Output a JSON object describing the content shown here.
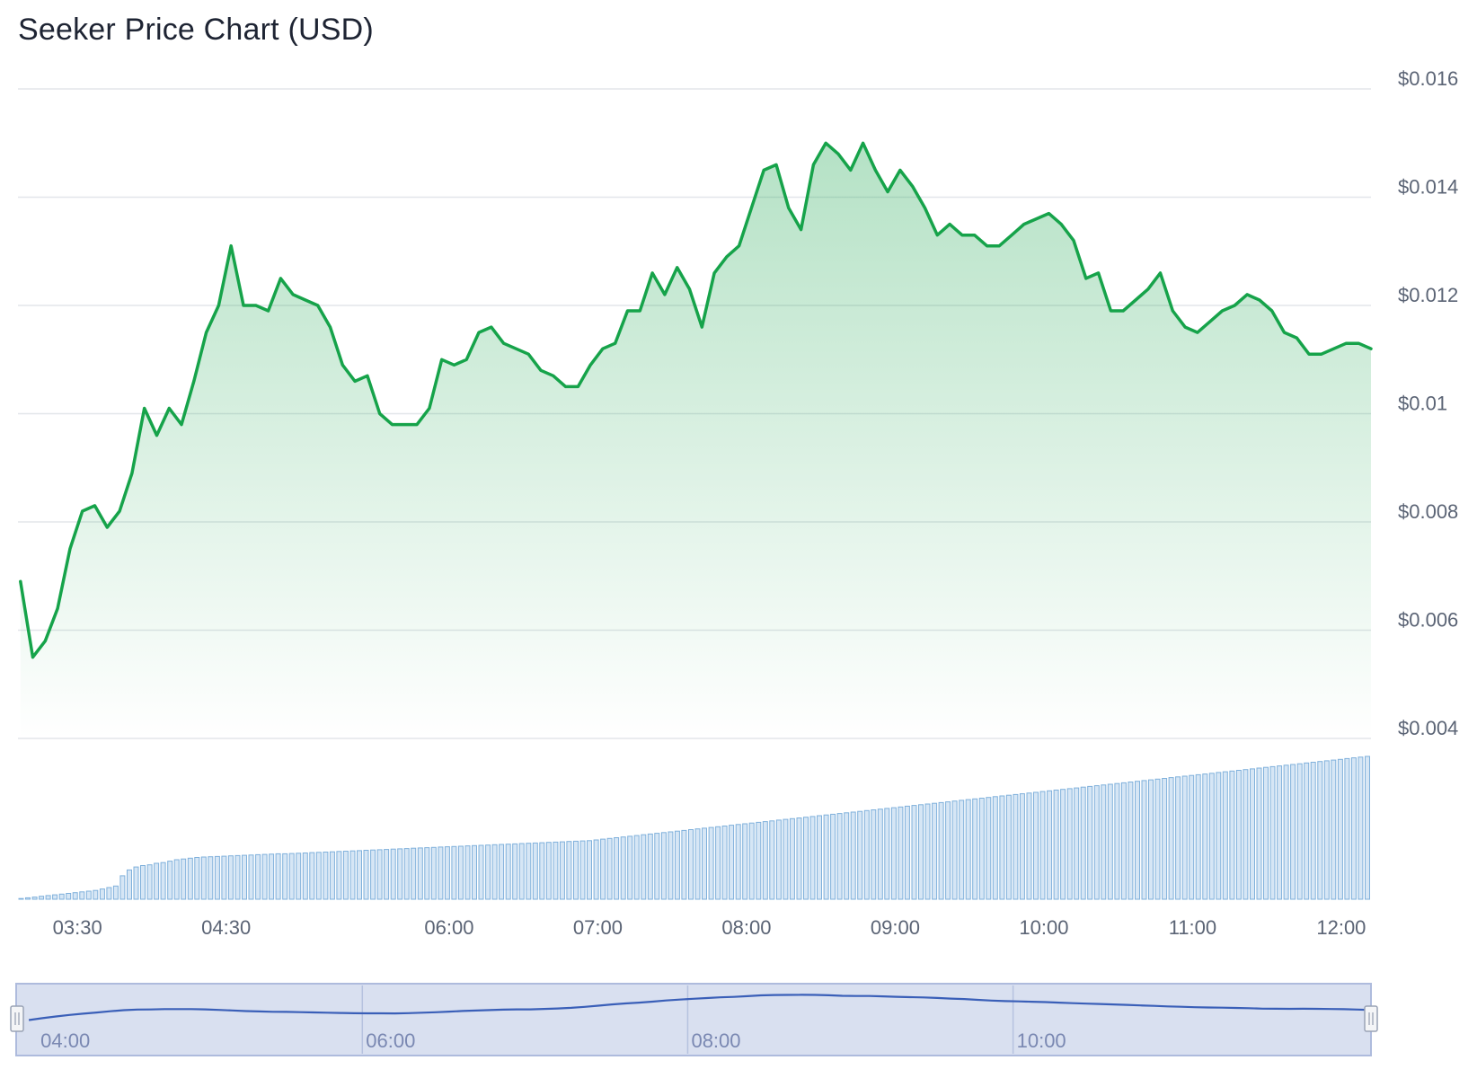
{
  "chart_data": {
    "type": "area",
    "title": "Seeker Price Chart (USD)",
    "xlabel": "",
    "ylabel": "",
    "ylim": [
      0.004,
      0.016
    ],
    "y_ticks": [
      "$0.004",
      "$0.006",
      "$0.008",
      "$0.01",
      "$0.012",
      "$0.014",
      "$0.016"
    ],
    "y_tick_values": [
      0.004,
      0.006,
      0.008,
      0.01,
      0.012,
      0.014,
      0.016
    ],
    "x_ticks": [
      "03:30",
      "04:30",
      "06:00",
      "07:00",
      "08:00",
      "09:00",
      "10:00",
      "11:00",
      "12:00"
    ],
    "x_tick_times": [
      "03:30",
      "04:30",
      "06:00",
      "07:00",
      "08:00",
      "09:00",
      "10:00",
      "11:00",
      "12:00"
    ],
    "x_range": [
      "03:06",
      "12:12"
    ],
    "grid": true,
    "legend": "none",
    "colors": {
      "line": "#16a34a",
      "fill": "#bfe8c9",
      "volume_bar": "#d6e6f5",
      "volume_edge": "#7fb0db",
      "navigator_line": "#3a5fb8",
      "navigator_fill": "#d9e0f0"
    },
    "series": [
      {
        "kind": "price",
        "points": [
          [
            "03:07",
            0.0069
          ],
          [
            "03:12",
            0.0055
          ],
          [
            "03:17",
            0.0058
          ],
          [
            "03:22",
            0.0064
          ],
          [
            "03:27",
            0.0075
          ],
          [
            "03:32",
            0.0082
          ],
          [
            "03:37",
            0.0083
          ],
          [
            "03:42",
            0.0079
          ],
          [
            "03:47",
            0.0082
          ],
          [
            "03:52",
            0.0089
          ],
          [
            "03:57",
            0.0101
          ],
          [
            "04:02",
            0.0096
          ],
          [
            "04:07",
            0.0101
          ],
          [
            "04:12",
            0.0098
          ],
          [
            "04:17",
            0.0106
          ],
          [
            "04:22",
            0.0115
          ],
          [
            "04:27",
            0.012
          ],
          [
            "04:32",
            0.0131
          ],
          [
            "04:37",
            0.012
          ],
          [
            "04:42",
            0.012
          ],
          [
            "04:47",
            0.0119
          ],
          [
            "04:52",
            0.0125
          ],
          [
            "04:57",
            0.0122
          ],
          [
            "05:02",
            0.0121
          ],
          [
            "05:07",
            0.012
          ],
          [
            "05:12",
            0.0116
          ],
          [
            "05:17",
            0.0109
          ],
          [
            "05:22",
            0.0106
          ],
          [
            "05:27",
            0.0107
          ],
          [
            "05:32",
            0.01
          ],
          [
            "05:37",
            0.0098
          ],
          [
            "05:42",
            0.0098
          ],
          [
            "05:47",
            0.0098
          ],
          [
            "05:52",
            0.0101
          ],
          [
            "05:57",
            0.011
          ],
          [
            "06:02",
            0.0109
          ],
          [
            "06:07",
            0.011
          ],
          [
            "06:12",
            0.0115
          ],
          [
            "06:17",
            0.0116
          ],
          [
            "06:22",
            0.0113
          ],
          [
            "06:27",
            0.0112
          ],
          [
            "06:32",
            0.0111
          ],
          [
            "06:37",
            0.0108
          ],
          [
            "06:42",
            0.0107
          ],
          [
            "06:47",
            0.0105
          ],
          [
            "06:52",
            0.0105
          ],
          [
            "06:57",
            0.0109
          ],
          [
            "07:02",
            0.0112
          ],
          [
            "07:07",
            0.0113
          ],
          [
            "07:12",
            0.0119
          ],
          [
            "07:17",
            0.0119
          ],
          [
            "07:22",
            0.0126
          ],
          [
            "07:27",
            0.0122
          ],
          [
            "07:32",
            0.0127
          ],
          [
            "07:37",
            0.0123
          ],
          [
            "07:42",
            0.0116
          ],
          [
            "07:47",
            0.0126
          ],
          [
            "07:52",
            0.0129
          ],
          [
            "07:57",
            0.0131
          ],
          [
            "08:02",
            0.0138
          ],
          [
            "08:07",
            0.0145
          ],
          [
            "08:12",
            0.0146
          ],
          [
            "08:17",
            0.0138
          ],
          [
            "08:22",
            0.0134
          ],
          [
            "08:27",
            0.0146
          ],
          [
            "08:32",
            0.015
          ],
          [
            "08:37",
            0.0148
          ],
          [
            "08:42",
            0.0145
          ],
          [
            "08:47",
            0.015
          ],
          [
            "08:52",
            0.0145
          ],
          [
            "08:57",
            0.0141
          ],
          [
            "09:02",
            0.0145
          ],
          [
            "09:07",
            0.0142
          ],
          [
            "09:12",
            0.0138
          ],
          [
            "09:17",
            0.0133
          ],
          [
            "09:22",
            0.0135
          ],
          [
            "09:27",
            0.0133
          ],
          [
            "09:32",
            0.0133
          ],
          [
            "09:37",
            0.0131
          ],
          [
            "09:42",
            0.0131
          ],
          [
            "09:47",
            0.0133
          ],
          [
            "09:52",
            0.0135
          ],
          [
            "09:57",
            0.0136
          ],
          [
            "10:02",
            0.0137
          ],
          [
            "10:07",
            0.0135
          ],
          [
            "10:12",
            0.0132
          ],
          [
            "10:17",
            0.0125
          ],
          [
            "10:22",
            0.0126
          ],
          [
            "10:27",
            0.0119
          ],
          [
            "10:32",
            0.0119
          ],
          [
            "10:37",
            0.0121
          ],
          [
            "10:42",
            0.0123
          ],
          [
            "10:47",
            0.0126
          ],
          [
            "10:52",
            0.0119
          ],
          [
            "10:57",
            0.0116
          ],
          [
            "11:02",
            0.0115
          ],
          [
            "11:07",
            0.0117
          ],
          [
            "11:12",
            0.0119
          ],
          [
            "11:17",
            0.012
          ],
          [
            "11:22",
            0.0122
          ],
          [
            "11:27",
            0.0121
          ],
          [
            "11:32",
            0.0119
          ],
          [
            "11:37",
            0.0115
          ],
          [
            "11:42",
            0.0114
          ],
          [
            "11:47",
            0.0111
          ],
          [
            "11:52",
            0.0111
          ],
          [
            "11:57",
            0.0112
          ],
          [
            "12:02",
            0.0113
          ],
          [
            "12:07",
            0.0113
          ],
          [
            "12:12",
            0.0112
          ]
        ]
      },
      {
        "kind": "volume",
        "unit": "relative",
        "values": [
          0.5,
          1,
          1.5,
          2,
          2.5,
          3,
          3.5,
          4,
          4.5,
          5,
          5.5,
          6,
          7,
          8,
          9,
          16,
          20,
          22,
          23,
          23.5,
          24.5,
          25,
          26,
          27,
          27.5,
          28,
          28.5,
          28.8,
          29,
          29.2,
          29.4,
          29.6,
          29.8,
          30,
          30.2,
          30.4,
          30.6,
          30.8,
          31,
          31,
          31.2,
          31.4,
          31.6,
          31.8,
          32,
          32.2,
          32.4,
          32.6,
          32.8,
          33,
          33.2,
          33.4,
          33.6,
          33.8,
          34,
          34.2,
          34.4,
          34.6,
          34.8,
          35,
          35.2,
          35.4,
          35.6,
          35.8,
          36,
          36.2,
          36.4,
          36.6,
          36.8,
          37,
          37.2,
          37.4,
          37.6,
          37.8,
          38,
          38.2,
          38.4,
          38.6,
          38.8,
          39,
          39.2,
          39.4,
          39.6,
          39.8,
          40,
          40.5,
          41,
          41.5,
          42,
          42.5,
          43,
          43.5,
          44,
          44.5,
          45,
          45.5,
          46,
          46.5,
          47,
          47.5,
          48,
          48.5,
          49,
          49.5,
          50,
          50.5,
          51,
          51.5,
          52,
          52.5,
          53,
          53.5,
          54,
          54.5,
          55,
          55.5,
          56,
          56.5,
          57,
          57.5,
          58,
          58.5,
          59,
          59.5,
          60,
          60.5,
          61,
          61.5,
          62,
          62.5,
          63,
          63.5,
          64,
          64.5,
          65,
          65.5,
          66,
          66.5,
          67,
          67.5,
          68,
          68.5,
          69,
          69.5,
          70,
          70.5,
          71,
          71.5,
          72,
          72.5,
          73,
          73.5,
          74,
          74.5,
          75,
          75.5,
          76,
          76.5,
          77,
          77.5,
          78,
          78.5,
          79,
          79.5,
          80,
          80.5,
          81,
          81.5,
          82,
          82.5,
          83,
          83.5,
          84,
          84.5,
          85,
          85.5,
          86,
          86.5,
          87,
          87.5,
          88,
          88.5,
          89,
          89.5,
          90,
          90.5,
          91,
          91.5,
          92,
          92.5,
          93,
          93.5,
          94,
          94.5,
          95,
          95.5,
          96,
          96.5,
          97,
          97.5
        ]
      }
    ],
    "navigator": {
      "x_ticks": [
        "04:00",
        "06:00",
        "08:00",
        "10:00"
      ],
      "x_tick_times": [
        "04:00",
        "06:00",
        "08:00",
        "10:00"
      ],
      "x_range": [
        "03:53",
        "12:12"
      ]
    }
  }
}
